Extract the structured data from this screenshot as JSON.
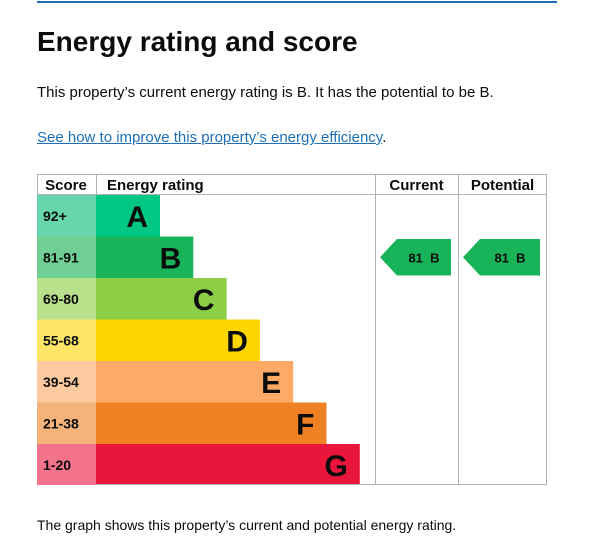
{
  "page": {
    "title": "Energy rating and score",
    "summary": "This property’s current energy rating is B. It has the potential to be B.",
    "link_text": "See how to improve this property’s energy efficiency",
    "link_suffix": ".",
    "footer": "The graph shows this property’s current and potential energy rating."
  },
  "chart_data": {
    "type": "table",
    "headers": {
      "score": "Score",
      "rating": "Energy rating",
      "current": "Current",
      "potential": "Potential"
    },
    "bands": [
      {
        "score": "92+",
        "letter": "A",
        "color": "#00c781",
        "score_color": "#67d6ac"
      },
      {
        "score": "81-91",
        "letter": "B",
        "color": "#19b459",
        "score_color": "#6fcf94"
      },
      {
        "score": "69-80",
        "letter": "C",
        "color": "#8dce46",
        "score_color": "#b9e18c"
      },
      {
        "score": "55-68",
        "letter": "D",
        "color": "#ffd500",
        "score_color": "#ffe666"
      },
      {
        "score": "39-54",
        "letter": "E",
        "color": "#fcaa65",
        "score_color": "#fdcaa0"
      },
      {
        "score": "21-38",
        "letter": "F",
        "color": "#ef8023",
        "score_color": "#f5b37b"
      },
      {
        "score": "1-20",
        "letter": "G",
        "color": "#e9153b",
        "score_color": "#f2738a"
      }
    ],
    "current": {
      "score": 81,
      "letter": "B",
      "label": "81  B",
      "band": "B",
      "color": "#19b459"
    },
    "potential": {
      "score": 81,
      "letter": "B",
      "label": "81  B",
      "band": "B",
      "color": "#19b459"
    }
  }
}
